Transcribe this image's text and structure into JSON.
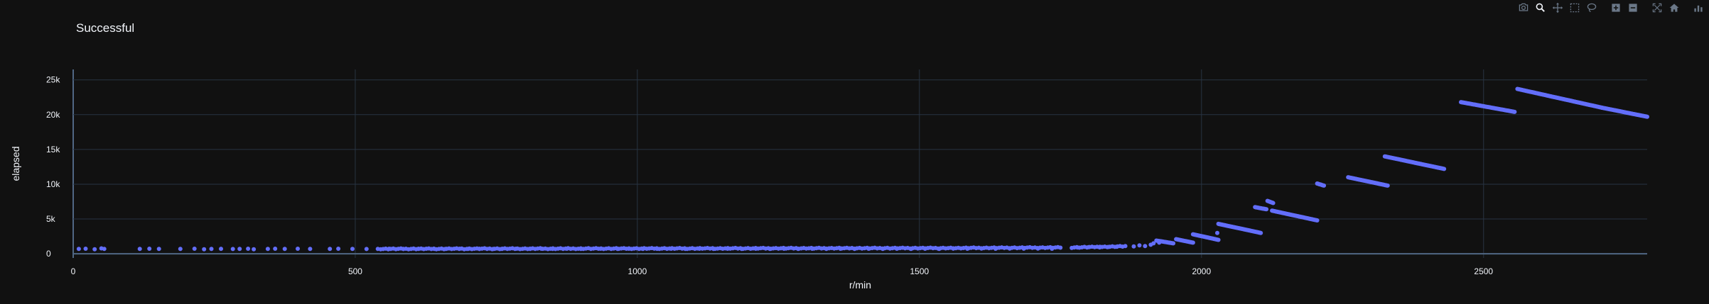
{
  "modebar": {
    "buttons": [
      "camera-icon",
      "zoom-icon",
      "pan-icon",
      "box-select-icon",
      "lasso-icon",
      "zoom-in-icon",
      "zoom-out-icon",
      "autoscale-icon",
      "reset-axes-icon",
      "plotly-logo-icon"
    ],
    "active": "zoom-icon",
    "icon_color": "#6b7888",
    "active_color": "#f2f5fa"
  },
  "chart_data": {
    "type": "scatter",
    "title": "Successful",
    "xlabel": "r/min",
    "ylabel": "elapsed",
    "xlim": [
      0,
      2790
    ],
    "ylim": [
      -600,
      26500
    ],
    "x_ticks": [
      0,
      500,
      1000,
      1500,
      2000,
      2500
    ],
    "x_tick_labels": [
      "0",
      "500",
      "1000",
      "1500",
      "2000",
      "2500"
    ],
    "y_ticks": [
      0,
      5000,
      10000,
      15000,
      20000,
      25000
    ],
    "y_tick_labels": [
      "0",
      "5k",
      "10k",
      "15k",
      "20k",
      "25k"
    ],
    "grid": true,
    "marker_color": "#636efa",
    "background": "#111111",
    "grid_color": "#283442",
    "scattered_points": [
      [
        10,
        700
      ],
      [
        22,
        720
      ],
      [
        38,
        640
      ],
      [
        50,
        780
      ],
      [
        55,
        700
      ],
      [
        118,
        690
      ],
      [
        135,
        720
      ],
      [
        152,
        700
      ],
      [
        190,
        700
      ],
      [
        215,
        720
      ],
      [
        232,
        650
      ],
      [
        245,
        700
      ],
      [
        262,
        710
      ],
      [
        283,
        680
      ],
      [
        295,
        700
      ],
      [
        310,
        720
      ],
      [
        320,
        650
      ],
      [
        345,
        700
      ],
      [
        358,
        720
      ],
      [
        375,
        700
      ],
      [
        398,
        720
      ],
      [
        420,
        690
      ],
      [
        455,
        700
      ],
      [
        470,
        720
      ],
      [
        495,
        700
      ],
      [
        520,
        680
      ],
      [
        540,
        700
      ],
      [
        560,
        720
      ],
      [
        585,
        700
      ],
      [
        612,
        720
      ],
      [
        640,
        690
      ],
      [
        660,
        700
      ],
      [
        685,
        720
      ],
      [
        700,
        700
      ],
      [
        720,
        720
      ],
      [
        745,
        700
      ],
      [
        760,
        690
      ],
      [
        785,
        720
      ],
      [
        810,
        700
      ],
      [
        830,
        720
      ],
      [
        850,
        700
      ],
      [
        875,
        720
      ],
      [
        900,
        700
      ],
      [
        935,
        720
      ],
      [
        965,
        700
      ],
      [
        985,
        720
      ],
      [
        1010,
        700
      ],
      [
        1035,
        710
      ],
      [
        1060,
        720
      ],
      [
        1085,
        700
      ],
      [
        1110,
        720
      ],
      [
        1135,
        700
      ],
      [
        1160,
        720
      ],
      [
        1185,
        700
      ],
      [
        1210,
        720
      ],
      [
        1235,
        700
      ],
      [
        1260,
        720
      ],
      [
        1285,
        700
      ],
      [
        1310,
        720
      ],
      [
        1335,
        700
      ],
      [
        1360,
        720
      ],
      [
        1385,
        700
      ],
      [
        1410,
        720
      ],
      [
        1435,
        700
      ],
      [
        1460,
        720
      ],
      [
        1485,
        700
      ],
      [
        1510,
        720
      ],
      [
        1535,
        700
      ],
      [
        1560,
        750
      ],
      [
        1585,
        720
      ],
      [
        1610,
        750
      ],
      [
        1635,
        720
      ],
      [
        1660,
        760
      ],
      [
        1685,
        730
      ],
      [
        1710,
        760
      ],
      [
        1735,
        720
      ],
      [
        1780,
        900
      ],
      [
        1800,
        950
      ],
      [
        1820,
        1000
      ],
      [
        1835,
        980
      ],
      [
        1850,
        1000
      ],
      [
        1865,
        1100
      ],
      [
        1880,
        1050
      ],
      [
        1890,
        1200
      ],
      [
        1900,
        1100
      ],
      [
        1910,
        1300
      ],
      [
        1915,
        1500
      ],
      [
        1925,
        1600
      ],
      [
        2028,
        3000
      ]
    ],
    "dense_bands": [
      {
        "x_from": 545,
        "x_to": 1560,
        "y_from": 700,
        "y_to": 820
      },
      {
        "x_from": 1560,
        "x_to": 1750,
        "y_from": 820,
        "y_to": 900
      },
      {
        "x_from": 1770,
        "x_to": 1860,
        "y_from": 900,
        "y_to": 1050
      }
    ],
    "segments": [
      {
        "x_from": 1920,
        "x_to": 1950,
        "y_from": 1900,
        "y_to": 1500
      },
      {
        "x_from": 1955,
        "x_to": 1985,
        "y_from": 2100,
        "y_to": 1600
      },
      {
        "x_from": 1985,
        "x_to": 2030,
        "y_from": 2800,
        "y_to": 2000
      },
      {
        "x_from": 2030,
        "x_to": 2105,
        "y_from": 4300,
        "y_to": 3000
      },
      {
        "x_from": 2095,
        "x_to": 2115,
        "y_from": 6700,
        "y_to": 6400
      },
      {
        "x_from": 2117,
        "x_to": 2127,
        "y_from": 7600,
        "y_to": 7300
      },
      {
        "x_from": 2125,
        "x_to": 2205,
        "y_from": 6200,
        "y_to": 4800
      },
      {
        "x_from": 2205,
        "x_to": 2217,
        "y_from": 10100,
        "y_to": 9800
      },
      {
        "x_from": 2260,
        "x_to": 2330,
        "y_from": 11000,
        "y_to": 9800
      },
      {
        "x_from": 2325,
        "x_to": 2430,
        "y_from": 14000,
        "y_to": 12200
      },
      {
        "x_from": 2460,
        "x_to": 2555,
        "y_from": 21800,
        "y_to": 20400
      },
      {
        "x_from": 2560,
        "x_to": 2710,
        "y_from": 23700,
        "y_to": 21000
      },
      {
        "x_from": 2710,
        "x_to": 2790,
        "y_from": 21000,
        "y_to": 19700
      }
    ]
  }
}
